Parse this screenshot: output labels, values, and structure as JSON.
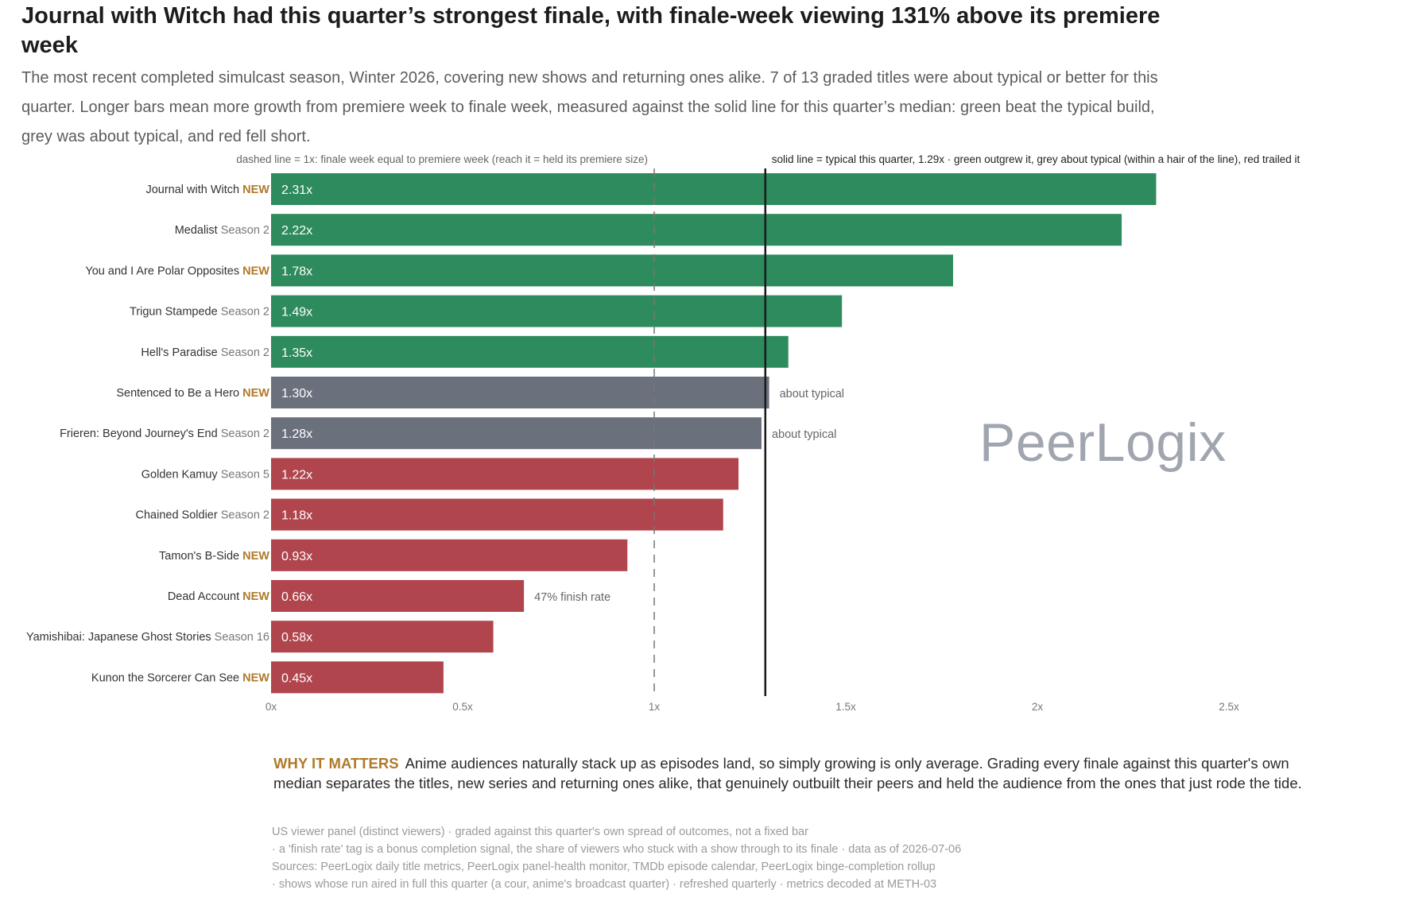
{
  "headline": "Journal with Witch had this quarter’s strongest finale, with finale-week viewing 131% above its premiere week",
  "subtitle": "The most recent completed simulcast season, Winter 2026, covering new shows and returning ones alike. 7 of 13 graded titles were about typical or better for this quarter. Longer bars mean more growth from premiere week to finale week, measured against the solid line for this quarter’s median: green beat the typical build, grey was about typical, and red fell short.",
  "watermark": "PeerLogix",
  "why_it_matters": {
    "tag": "WHY IT MATTERS",
    "text": "Anime audiences naturally stack up as episodes land, so simply growing is only average. Grading every finale against this quarter's own median separates the titles, new series and returning ones alike, that genuinely outbuilt their peers and held the audience from the ones that just rode the tide."
  },
  "footnotes": [
    "US viewer panel (distinct viewers) · graded against this quarter's own spread of outcomes, not a fixed bar",
    "· a 'finish rate' tag is a bonus completion signal, the share of viewers who stuck with a show through to its finale · data as of 2026-07-06",
    "Sources: PeerLogix daily title metrics, PeerLogix panel-health monitor, TMDb episode calendar, PeerLogix binge-completion rollup",
    "· shows whose run aired in full this quarter (a cour, anime's broadcast quarter) · refreshed quarterly · metrics decoded at METH-03"
  ],
  "colors": {
    "above": "#2e8b5e",
    "typical": "#6b707d",
    "below": "#b0454d",
    "new_tag": "#b07a2a",
    "season_tag": "#777777",
    "note": "#666666"
  },
  "chart_data": {
    "type": "bar",
    "orientation": "horizontal",
    "xlim": [
      0,
      2.5
    ],
    "x_ticks": [
      0,
      0.5,
      1,
      1.5,
      2,
      2.5
    ],
    "x_tick_labels": [
      "0x",
      "0.5x",
      "1x",
      "1.5x",
      "2x",
      "2.5x"
    ],
    "reference_lines": [
      {
        "value": 1.0,
        "style": "dashed",
        "label": "dashed line = 1x: finale week equal to premiere week (reach it = held its premiere size)"
      },
      {
        "value": 1.29,
        "style": "solid",
        "label": "solid line = typical this quarter, 1.29x · green outgrew it, grey about typical (within a hair of the line), red trailed it"
      }
    ],
    "bars": [
      {
        "title": "Journal with Witch",
        "tag": "NEW",
        "tag_type": "new",
        "value": 2.31,
        "label": "2.31x",
        "grade": "above",
        "note": ""
      },
      {
        "title": "Medalist",
        "tag": "Season 2",
        "tag_type": "season",
        "value": 2.22,
        "label": "2.22x",
        "grade": "above",
        "note": ""
      },
      {
        "title": "You and I Are Polar Opposites",
        "tag": "NEW",
        "tag_type": "new",
        "value": 1.78,
        "label": "1.78x",
        "grade": "above",
        "note": ""
      },
      {
        "title": "Trigun Stampede",
        "tag": "Season 2",
        "tag_type": "season",
        "value": 1.49,
        "label": "1.49x",
        "grade": "above",
        "note": ""
      },
      {
        "title": "Hell's Paradise",
        "tag": "Season 2",
        "tag_type": "season",
        "value": 1.35,
        "label": "1.35x",
        "grade": "above",
        "note": ""
      },
      {
        "title": "Sentenced to Be a Hero",
        "tag": "NEW",
        "tag_type": "new",
        "value": 1.3,
        "label": "1.30x",
        "grade": "typical",
        "note": "about typical"
      },
      {
        "title": "Frieren: Beyond Journey's End",
        "tag": "Season 2",
        "tag_type": "season",
        "value": 1.28,
        "label": "1.28x",
        "grade": "typical",
        "note": "about typical"
      },
      {
        "title": "Golden Kamuy",
        "tag": "Season 5",
        "tag_type": "season",
        "value": 1.22,
        "label": "1.22x",
        "grade": "below",
        "note": ""
      },
      {
        "title": "Chained Soldier",
        "tag": "Season 2",
        "tag_type": "season",
        "value": 1.18,
        "label": "1.18x",
        "grade": "below",
        "note": ""
      },
      {
        "title": "Tamon's B-Side",
        "tag": "NEW",
        "tag_type": "new",
        "value": 0.93,
        "label": "0.93x",
        "grade": "below",
        "note": ""
      },
      {
        "title": "Dead Account",
        "tag": "NEW",
        "tag_type": "new",
        "value": 0.66,
        "label": "0.66x",
        "grade": "below",
        "note": "47% finish rate"
      },
      {
        "title": "Yamishibai: Japanese Ghost Stories",
        "tag": "Season 16",
        "tag_type": "season",
        "value": 0.58,
        "label": "0.58x",
        "grade": "below",
        "note": ""
      },
      {
        "title": "Kunon the Sorcerer Can See",
        "tag": "NEW",
        "tag_type": "new",
        "value": 0.45,
        "label": "0.45x",
        "grade": "below",
        "note": ""
      }
    ]
  }
}
